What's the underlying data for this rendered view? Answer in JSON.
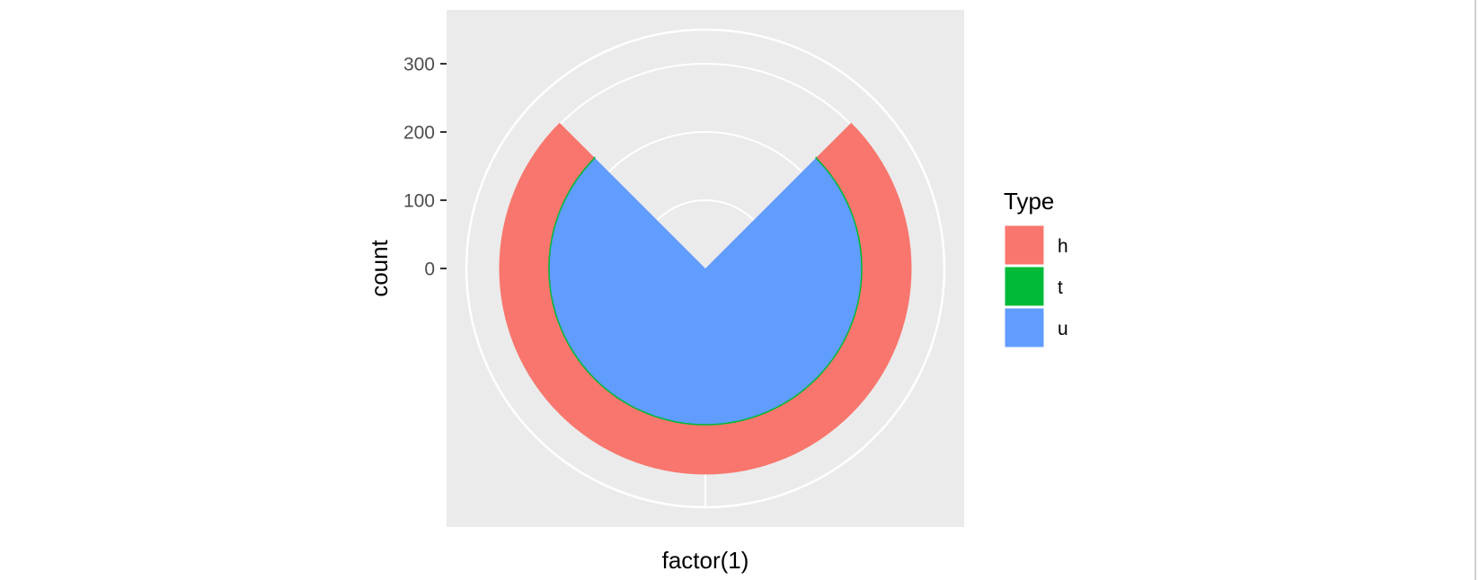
{
  "chart_data": {
    "type": "pie",
    "title": "",
    "xlabel": "factor(1)",
    "ylabel": "count",
    "ylim": [
      0,
      350
    ],
    "y_ticks": [
      0,
      100,
      200,
      300
    ],
    "y_tick_labels": [
      "0",
      "100",
      "200",
      "300"
    ],
    "grid": true,
    "legend": {
      "title": "Type",
      "position": "right",
      "entries": [
        "h",
        "t",
        "u"
      ]
    },
    "series": [
      {
        "name": "h",
        "value": 72,
        "color": "#F8766D"
      },
      {
        "name": "t",
        "value": 1,
        "color": "#00BA38"
      },
      {
        "name": "u",
        "value": 229,
        "color": "#619CFF"
      }
    ],
    "total": 302,
    "panel_color": "#EBEBEB",
    "grid_color": "#FFFFFF"
  }
}
